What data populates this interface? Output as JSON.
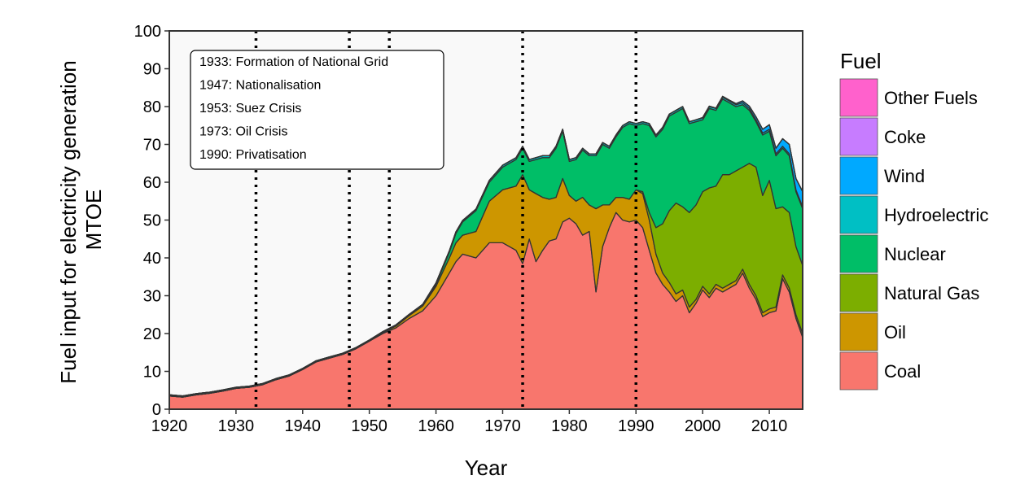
{
  "chart_data": {
    "type": "area",
    "stacked": true,
    "title": "",
    "xlabel": "Year",
    "ylabel": [
      "Fuel input for electricity generation",
      "MTOE"
    ],
    "xlim": [
      1920,
      2015
    ],
    "ylim": [
      0,
      100
    ],
    "x_ticks": [
      1920,
      1930,
      1940,
      1950,
      1960,
      1970,
      1980,
      1990,
      2000,
      2010
    ],
    "y_ticks": [
      0,
      10,
      20,
      30,
      40,
      50,
      60,
      70,
      80,
      90,
      100
    ],
    "grid": false,
    "background": "#f9f9f9",
    "legend": {
      "title": "Fuel",
      "position": "right",
      "order": [
        "Other Fuels",
        "Coke",
        "Wind",
        "Hydroelectric",
        "Nuclear",
        "Natural Gas",
        "Oil",
        "Coal"
      ]
    },
    "annotations": {
      "lines": [
        1933,
        1947,
        1953,
        1973,
        1990
      ],
      "labels": [
        "1933: Formation of National Grid",
        "1947: Nationalisation",
        "1953: Suez Crisis",
        "1973: Oil Crisis",
        "1990: Privatisation"
      ]
    },
    "x": [
      1920,
      1922,
      1924,
      1926,
      1928,
      1930,
      1932,
      1934,
      1936,
      1938,
      1940,
      1942,
      1944,
      1946,
      1948,
      1950,
      1952,
      1954,
      1956,
      1958,
      1960,
      1962,
      1963,
      1964,
      1966,
      1968,
      1970,
      1972,
      1973,
      1974,
      1975,
      1976,
      1977,
      1978,
      1979,
      1980,
      1981,
      1982,
      1983,
      1984,
      1985,
      1986,
      1987,
      1988,
      1989,
      1990,
      1991,
      1992,
      1993,
      1994,
      1995,
      1996,
      1997,
      1998,
      1999,
      2000,
      2001,
      2002,
      2003,
      2004,
      2005,
      2006,
      2007,
      2008,
      2009,
      2010,
      2011,
      2012,
      2013,
      2014,
      2015
    ],
    "series": [
      {
        "name": "Coal",
        "color": "#f8766d",
        "values": [
          3.5,
          3.2,
          3.8,
          4.2,
          4.8,
          5.5,
          5.8,
          6.5,
          7.8,
          8.8,
          10.5,
          12.5,
          13.5,
          14.5,
          16,
          18,
          20,
          21.5,
          24,
          26,
          30,
          36,
          39,
          41,
          40,
          44,
          44,
          42,
          38.5,
          45,
          39,
          42,
          44.5,
          45,
          49.5,
          50.5,
          49,
          46,
          47,
          31,
          43,
          48,
          52,
          50,
          49.5,
          50,
          48,
          42,
          36,
          33,
          31,
          28.5,
          30,
          25.5,
          28,
          31.5,
          29.5,
          32,
          31,
          32,
          33,
          36,
          32,
          29,
          24.5,
          25.5,
          26,
          34.5,
          31,
          24,
          19
        ]
      },
      {
        "name": "Oil",
        "color": "#cd9600",
        "values": [
          0,
          0,
          0,
          0,
          0,
          0,
          0,
          0,
          0,
          0,
          0,
          0,
          0,
          0,
          0,
          0,
          0.2,
          0.5,
          0.8,
          1.3,
          2.5,
          4,
          5,
          5,
          7,
          11,
          14,
          17,
          23.5,
          13,
          18,
          14,
          11,
          11,
          11.5,
          6,
          6,
          10,
          7,
          22,
          11,
          6,
          4,
          6,
          6,
          8,
          9,
          8,
          5,
          3,
          2.5,
          2,
          1.5,
          1.5,
          1,
          1,
          1,
          1,
          1,
          1,
          1,
          1,
          1,
          1,
          1,
          1,
          1,
          1,
          1,
          1,
          1
        ]
      },
      {
        "name": "Natural Gas",
        "color": "#7cae00",
        "values": [
          0,
          0,
          0,
          0,
          0,
          0,
          0,
          0,
          0,
          0,
          0,
          0,
          0,
          0,
          0,
          0,
          0,
          0,
          0,
          0,
          0,
          0,
          0,
          0,
          0,
          0,
          0,
          0,
          0,
          0,
          0,
          0,
          0,
          0,
          0,
          0,
          0,
          0,
          0,
          0,
          0,
          0,
          0,
          0,
          0,
          0,
          0.5,
          2,
          7,
          13,
          19,
          24,
          22,
          25,
          25,
          25,
          28,
          26,
          30,
          29,
          29,
          27,
          32,
          34,
          31,
          34,
          26,
          18,
          20,
          18,
          18
        ]
      },
      {
        "name": "Nuclear",
        "color": "#00be67",
        "values": [
          0,
          0,
          0,
          0,
          0,
          0,
          0,
          0,
          0,
          0,
          0,
          0,
          0,
          0,
          0,
          0,
          0,
          0,
          0,
          0,
          0.5,
          1.5,
          2.5,
          3.5,
          5.5,
          5,
          6,
          7,
          7,
          7.5,
          9,
          10.5,
          11,
          13,
          12.5,
          9,
          11,
          12.5,
          13,
          14,
          16,
          15,
          16,
          18.5,
          20,
          17,
          18,
          23,
          24,
          25,
          25,
          24,
          26,
          23.5,
          22,
          19,
          21,
          20,
          20,
          19,
          17,
          16.5,
          14,
          12,
          16,
          13,
          14,
          15.5,
          15,
          14.5,
          15
        ]
      },
      {
        "name": "Hydroelectric",
        "color": "#00bfc4",
        "values": [
          0.3,
          0.3,
          0.3,
          0.3,
          0.3,
          0.3,
          0.3,
          0.3,
          0.3,
          0.3,
          0.3,
          0.3,
          0.3,
          0.3,
          0.3,
          0.3,
          0.3,
          0.3,
          0.3,
          0.4,
          0.4,
          0.4,
          0.4,
          0.4,
          0.4,
          0.5,
          0.5,
          0.5,
          0.5,
          0.5,
          0.5,
          0.5,
          0.5,
          0.5,
          0.5,
          0.5,
          0.5,
          0.5,
          0.5,
          0.5,
          0.5,
          0.5,
          0.5,
          0.5,
          0.5,
          0.5,
          0.5,
          0.5,
          0.5,
          0.5,
          0.5,
          0.5,
          0.5,
          0.5,
          0.5,
          0.5,
          0.5,
          0.5,
          0.5,
          0.5,
          0.5,
          0.5,
          0.5,
          0.5,
          0.5,
          0.5,
          0.5,
          0.5,
          0.5,
          0.5,
          0.5
        ]
      },
      {
        "name": "Wind",
        "color": "#00a9ff",
        "values": [
          0,
          0,
          0,
          0,
          0,
          0,
          0,
          0,
          0,
          0,
          0,
          0,
          0,
          0,
          0,
          0,
          0,
          0,
          0,
          0,
          0,
          0,
          0,
          0,
          0,
          0,
          0,
          0,
          0,
          0,
          0,
          0,
          0,
          0,
          0,
          0,
          0,
          0,
          0,
          0,
          0,
          0,
          0,
          0,
          0,
          0,
          0,
          0,
          0,
          0,
          0,
          0,
          0,
          0,
          0,
          0.1,
          0.1,
          0.1,
          0.2,
          0.2,
          0.3,
          0.5,
          0.6,
          0.8,
          1,
          1.2,
          1.5,
          2,
          2.5,
          3,
          4
        ]
      },
      {
        "name": "Coke",
        "color": "#c77cff",
        "values": [
          0,
          0,
          0,
          0,
          0,
          0,
          0,
          0,
          0,
          0,
          0,
          0,
          0,
          0,
          0,
          0,
          0,
          0,
          0,
          0,
          0,
          0,
          0,
          0,
          0,
          0,
          0,
          0,
          0,
          0,
          0,
          0,
          0,
          0,
          0,
          0,
          0,
          0,
          0,
          0,
          0,
          0,
          0,
          0,
          0,
          0,
          0,
          0,
          0,
          0,
          0,
          0,
          0,
          0,
          0,
          0,
          0,
          0,
          0,
          0,
          0,
          0,
          0,
          0,
          0,
          0,
          0,
          0,
          0,
          0,
          0
        ]
      },
      {
        "name": "Other Fuels",
        "color": "#ff61cc",
        "values": [
          0,
          0,
          0,
          0,
          0,
          0,
          0,
          0,
          0,
          0,
          0,
          0,
          0,
          0,
          0,
          0,
          0,
          0,
          0,
          0,
          0,
          0,
          0,
          0,
          0,
          0,
          0,
          0,
          0,
          0,
          0,
          0,
          0,
          0,
          0,
          0,
          0,
          0,
          0,
          0,
          0,
          0,
          0,
          0,
          0,
          0,
          0,
          0,
          0,
          0,
          0,
          0,
          0,
          0,
          0,
          0,
          0,
          0,
          0,
          0,
          0,
          0,
          0,
          0,
          0,
          0,
          0,
          0,
          0,
          0,
          0
        ]
      }
    ]
  }
}
